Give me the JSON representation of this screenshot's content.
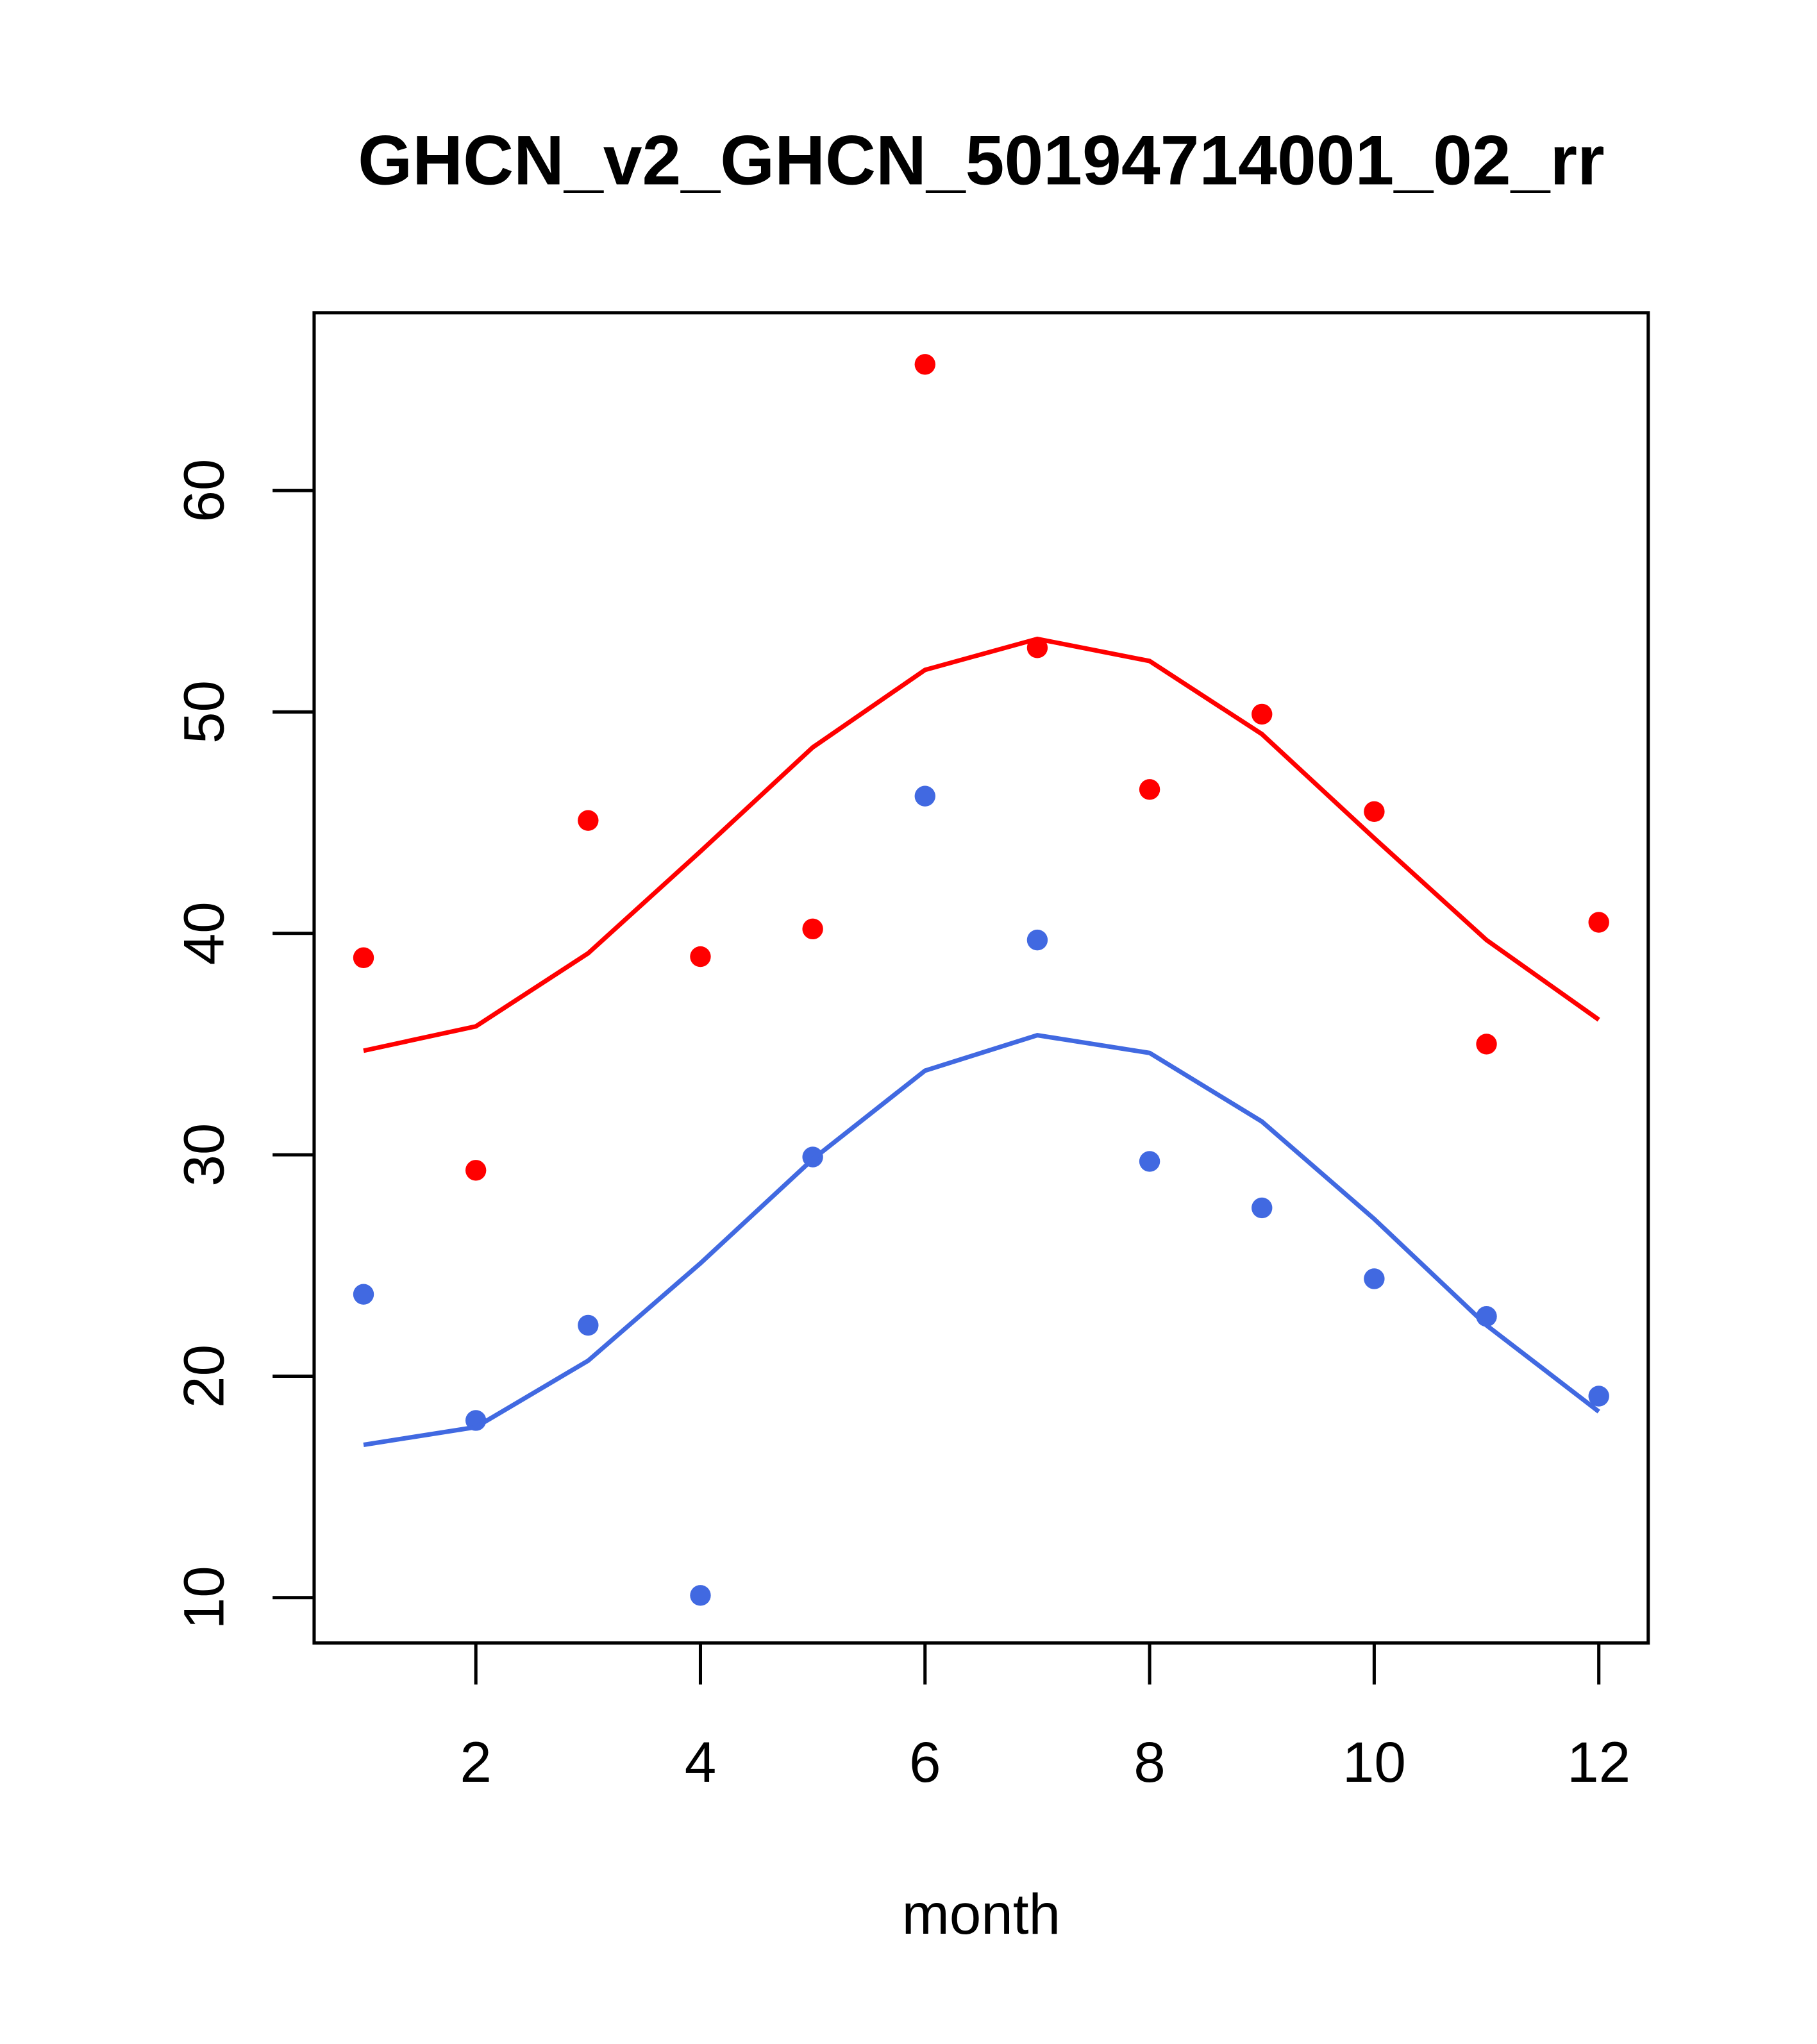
{
  "chart_data": {
    "type": "scatter",
    "title": "GHCN_v2_GHCN_50194714001_02_rr",
    "xlabel": "month",
    "ylabel": "",
    "xlim": [
      0.56,
      12.44
    ],
    "ylim": [
      7.95,
      68.03
    ],
    "x_ticks": [
      2,
      4,
      6,
      8,
      10,
      12
    ],
    "x_tick_labels": [
      "2",
      "4",
      "6",
      "8",
      "10",
      "12"
    ],
    "y_ticks": [
      10,
      20,
      30,
      40,
      50,
      60
    ],
    "y_tick_labels": [
      "10",
      "20",
      "30",
      "40",
      "50",
      "60"
    ],
    "grid": false,
    "x": [
      1,
      2,
      3,
      4,
      5,
      6,
      7,
      8,
      9,
      10,
      11,
      12
    ],
    "series": [
      {
        "name": "red points",
        "kind": "points",
        "color": "#ff0000",
        "values": [
          38.9,
          29.3,
          45.1,
          38.95,
          40.2,
          65.7,
          52.9,
          46.5,
          49.9,
          45.5,
          35.0,
          40.5
        ]
      },
      {
        "name": "red line",
        "kind": "line",
        "color": "#ff0000",
        "values": [
          34.7,
          35.8,
          39.1,
          43.7,
          48.4,
          51.9,
          53.3,
          52.3,
          49.0,
          44.3,
          39.7,
          36.1
        ]
      },
      {
        "name": "blue points",
        "kind": "points",
        "color": "#4169e1",
        "values": [
          23.7,
          18.0,
          22.3,
          10.1,
          29.9,
          46.2,
          39.7,
          29.7,
          27.6,
          24.4,
          22.7,
          19.1
        ]
      },
      {
        "name": "blue line",
        "kind": "line",
        "color": "#4169e1",
        "values": [
          16.9,
          17.7,
          20.7,
          25.1,
          29.8,
          33.8,
          35.4,
          34.6,
          31.5,
          27.1,
          22.3,
          18.4
        ]
      }
    ]
  }
}
